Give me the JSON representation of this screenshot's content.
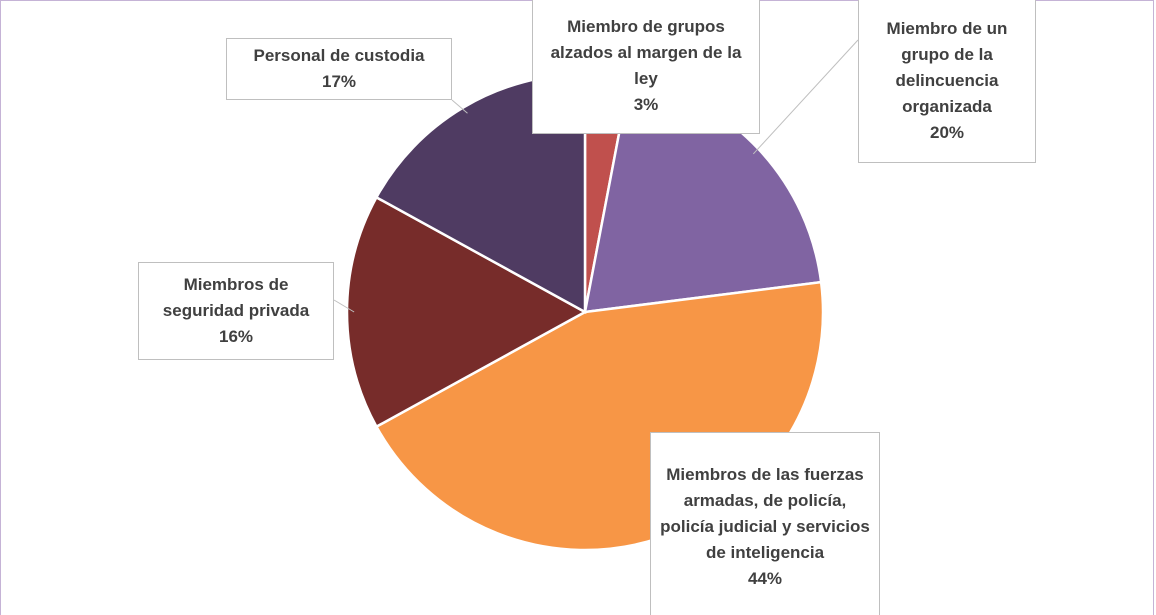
{
  "chart_data": {
    "type": "pie",
    "categories": [
      "Miembro de grupos alzados al margen de la ley",
      "Miembro de un grupo de la delincuencia organizada",
      "Miembros de las fuerzas armadas, de policía, policía judicial y servicios de inteligencia",
      "Miembros de seguridad privada",
      "Personal de custodia"
    ],
    "values": [
      3,
      20,
      44,
      16,
      17
    ],
    "value_labels": [
      "3%",
      "20%",
      "44%",
      "16%",
      "17%"
    ],
    "colors": [
      "#c0504d",
      "#8064a2",
      "#f79646",
      "#772c2a",
      "#4f3b62"
    ]
  }
}
